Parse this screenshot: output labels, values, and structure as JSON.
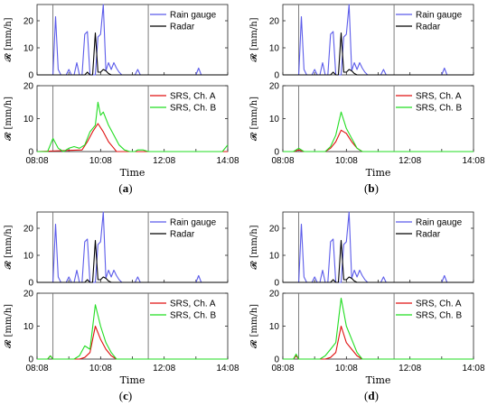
{
  "panel_labels": [
    {
      "open": "(",
      "letter": "a",
      "close": ")"
    },
    {
      "open": "(",
      "letter": "b",
      "close": ")"
    },
    {
      "open": "(",
      "letter": "c",
      "close": ")"
    },
    {
      "open": "(",
      "letter": "d",
      "close": ")"
    }
  ],
  "colors": {
    "rain_gauge": "#5b5bea",
    "radar": "#000000",
    "srs_a": "#e01010",
    "srs_b": "#22dd22",
    "marker_line": "#707070"
  },
  "chart_data": [
    {
      "panel": "a",
      "type": "line",
      "marker_times": [
        "08:38",
        "11:38"
      ],
      "top": {
        "ylabel": "𝓡 [mm/h]",
        "ylim": [
          0,
          26
        ],
        "yticks": [
          0,
          10,
          20
        ],
        "xlim": [
          "08:08",
          "14:08"
        ],
        "grid": false,
        "legend_position": "top-right",
        "series": [
          {
            "name": "Rain gauge",
            "color_key": "rain_gauge",
            "x": [
              "08:08",
              "08:38",
              "08:43",
              "08:48",
              "08:53",
              "08:58",
              "09:03",
              "09:08",
              "09:13",
              "09:18",
              "09:23",
              "09:28",
              "09:33",
              "09:38",
              "09:43",
              "09:48",
              "09:53",
              "09:58",
              "10:03",
              "10:08",
              "10:13",
              "10:18",
              "10:23",
              "10:28",
              "10:33",
              "10:38",
              "10:43",
              "10:48",
              "10:53",
              "10:58",
              "11:03",
              "11:08",
              "11:13",
              "11:18",
              "11:23",
              "13:08",
              "13:13",
              "13:18",
              "14:08"
            ],
            "y": [
              0,
              0,
              21.5,
              2,
              0,
              0,
              0,
              2,
              0,
              0,
              4.5,
              0,
              0,
              15,
              16,
              0,
              0,
              0,
              14,
              15,
              26,
              1.5,
              4.5,
              2,
              4.5,
              2.5,
              1,
              0,
              0,
              0,
              0,
              0,
              0,
              2,
              0,
              0,
              2.5,
              0,
              0
            ]
          },
          {
            "name": "Radar",
            "color_key": "radar",
            "x": [
              "08:08",
              "09:38",
              "09:43",
              "09:48",
              "09:53",
              "09:58",
              "10:03",
              "10:08",
              "10:13",
              "10:18",
              "10:23",
              "10:28",
              "10:33",
              "14:08"
            ],
            "y": [
              0,
              0,
              1,
              0,
              0,
              15.5,
              1,
              1,
              2,
              1.5,
              0.5,
              0,
              0,
              0
            ]
          }
        ]
      },
      "bottom": {
        "ylabel": "𝓡 [mm/h]",
        "xlabel": "Time",
        "ylim": [
          0,
          20
        ],
        "yticks": [
          0,
          10,
          20
        ],
        "xlim": [
          "08:08",
          "14:08"
        ],
        "xticks": [
          "08:08",
          "10:08",
          "12:08",
          "14:08"
        ],
        "grid": false,
        "legend_position": "top-right",
        "series": [
          {
            "name": "SRS, Ch. A",
            "color_key": "srs_a",
            "x": [
              "08:08",
              "09:33",
              "09:43",
              "09:53",
              "10:03",
              "10:13",
              "10:23",
              "10:33",
              "10:38",
              "14:08"
            ],
            "y": [
              0,
              0.5,
              3,
              6,
              8.5,
              6,
              3,
              1,
              0,
              0
            ]
          },
          {
            "name": "SRS, Ch. B",
            "color_key": "srs_b",
            "x": [
              "08:08",
              "08:28",
              "08:38",
              "08:48",
              "08:58",
              "09:08",
              "09:18",
              "09:28",
              "09:38",
              "09:48",
              "09:58",
              "10:03",
              "10:08",
              "10:13",
              "10:23",
              "10:33",
              "10:43",
              "10:53",
              "11:03",
              "11:13",
              "11:18",
              "11:28",
              "11:38",
              "13:58",
              "14:08"
            ],
            "y": [
              0,
              0,
              4,
              1,
              0,
              1,
              1.5,
              1,
              2,
              6,
              8,
              15,
              11,
              12,
              8,
              5,
              2,
              0.5,
              0,
              0,
              0.5,
              0.5,
              0,
              0,
              2
            ]
          }
        ]
      }
    },
    {
      "panel": "b",
      "type": "line",
      "marker_times": [
        "08:38",
        "11:38"
      ],
      "top": {
        "ylabel": "𝓡 [mm/h]",
        "ylim": [
          0,
          26
        ],
        "yticks": [
          0,
          10,
          20
        ],
        "xlim": [
          "08:08",
          "14:08"
        ],
        "grid": false,
        "legend_position": "top-right",
        "series": [
          {
            "name": "Rain gauge",
            "color_key": "rain_gauge",
            "x": [
              "08:08",
              "08:38",
              "08:43",
              "08:48",
              "08:53",
              "08:58",
              "09:03",
              "09:08",
              "09:13",
              "09:18",
              "09:23",
              "09:28",
              "09:33",
              "09:38",
              "09:43",
              "09:48",
              "09:53",
              "09:58",
              "10:03",
              "10:08",
              "10:13",
              "10:18",
              "10:23",
              "10:28",
              "10:33",
              "10:38",
              "10:43",
              "10:48",
              "10:53",
              "10:58",
              "11:03",
              "11:08",
              "11:13",
              "11:18",
              "11:23",
              "13:08",
              "13:13",
              "13:18",
              "14:08"
            ],
            "y": [
              0,
              0,
              21.5,
              2,
              0,
              0,
              0,
              2,
              0,
              0,
              4.5,
              0,
              0,
              15,
              16,
              0,
              0,
              0,
              14,
              15,
              26,
              1.5,
              4.5,
              2,
              4.5,
              2.5,
              1,
              0,
              0,
              0,
              0,
              0,
              0,
              2,
              0,
              0,
              2.5,
              0,
              0
            ]
          },
          {
            "name": "Radar",
            "color_key": "radar",
            "x": [
              "08:08",
              "09:38",
              "09:43",
              "09:48",
              "09:53",
              "09:58",
              "10:03",
              "10:08",
              "10:13",
              "10:18",
              "10:23",
              "10:28",
              "10:33",
              "14:08"
            ],
            "y": [
              0,
              0,
              1,
              0,
              0,
              15.5,
              1,
              1,
              2,
              1.5,
              0.5,
              0,
              0,
              0
            ]
          }
        ]
      },
      "bottom": {
        "ylabel": "𝓡 [mm/h]",
        "xlabel": "Time",
        "ylim": [
          0,
          20
        ],
        "yticks": [
          0,
          10,
          20
        ],
        "xlim": [
          "08:08",
          "14:08"
        ],
        "xticks": [
          "08:08",
          "10:08",
          "12:08",
          "14:08"
        ],
        "grid": false,
        "legend_position": "top-right",
        "series": [
          {
            "name": "SRS, Ch. A",
            "color_key": "srs_a",
            "x": [
              "08:08",
              "08:28",
              "08:38",
              "08:48",
              "09:28",
              "09:38",
              "09:48",
              "09:58",
              "10:08",
              "10:18",
              "10:28",
              "10:38",
              "14:08"
            ],
            "y": [
              0,
              0,
              0.5,
              0,
              0,
              1,
              3,
              6.5,
              5.5,
              3,
              1,
              0,
              0
            ]
          },
          {
            "name": "SRS, Ch. B",
            "color_key": "srs_b",
            "x": [
              "08:08",
              "08:28",
              "08:38",
              "08:48",
              "09:28",
              "09:38",
              "09:48",
              "09:58",
              "10:08",
              "10:18",
              "10:28",
              "10:38",
              "14:08"
            ],
            "y": [
              0,
              0,
              1,
              0,
              0,
              1.5,
              5,
              12,
              7,
              4,
              1,
              0,
              0
            ]
          }
        ]
      }
    },
    {
      "panel": "c",
      "type": "line",
      "marker_times": [
        "08:38",
        "11:38"
      ],
      "top": {
        "ylabel": "𝓡 [mm/h]",
        "ylim": [
          0,
          26
        ],
        "yticks": [
          0,
          10,
          20
        ],
        "xlim": [
          "08:08",
          "14:08"
        ],
        "grid": false,
        "legend_position": "top-right",
        "series": [
          {
            "name": "Rain gauge",
            "color_key": "rain_gauge",
            "x": [
              "08:08",
              "08:38",
              "08:43",
              "08:48",
              "08:53",
              "08:58",
              "09:03",
              "09:08",
              "09:13",
              "09:18",
              "09:23",
              "09:28",
              "09:33",
              "09:38",
              "09:43",
              "09:48",
              "09:53",
              "09:58",
              "10:03",
              "10:08",
              "10:13",
              "10:18",
              "10:23",
              "10:28",
              "10:33",
              "10:38",
              "10:43",
              "10:48",
              "10:53",
              "10:58",
              "11:03",
              "11:08",
              "11:13",
              "11:18",
              "11:23",
              "13:08",
              "13:13",
              "13:18",
              "14:08"
            ],
            "y": [
              0,
              0,
              21.5,
              2,
              0,
              0,
              0,
              2,
              0,
              0,
              4.5,
              0,
              0,
              15,
              16,
              0,
              0,
              0,
              14,
              15,
              26,
              1.5,
              4.5,
              2,
              4.5,
              2.5,
              1,
              0,
              0,
              0,
              0,
              0,
              0,
              2,
              0,
              0,
              2.5,
              0,
              0
            ]
          },
          {
            "name": "Radar",
            "color_key": "radar",
            "x": [
              "08:08",
              "09:38",
              "09:43",
              "09:48",
              "09:53",
              "09:58",
              "10:03",
              "10:08",
              "10:13",
              "10:18",
              "10:23",
              "10:28",
              "10:33",
              "14:08"
            ],
            "y": [
              0,
              0,
              1,
              0,
              0,
              15.5,
              1,
              1,
              2,
              1.5,
              0.5,
              0,
              0,
              0
            ]
          }
        ]
      },
      "bottom": {
        "ylabel": "𝓡 [mm/h]",
        "xlabel": "Time",
        "ylim": [
          0,
          20
        ],
        "yticks": [
          0,
          10,
          20
        ],
        "xlim": [
          "08:08",
          "14:08"
        ],
        "xticks": [
          "08:08",
          "10:08",
          "12:08",
          "14:08"
        ],
        "grid": false,
        "legend_position": "top-right",
        "series": [
          {
            "name": "SRS, Ch. A",
            "color_key": "srs_a",
            "x": [
              "08:08",
              "08:28",
              "08:33",
              "08:38",
              "09:28",
              "09:38",
              "09:48",
              "09:58",
              "10:08",
              "10:18",
              "10:28",
              "10:38",
              "14:08"
            ],
            "y": [
              0,
              0,
              1,
              0,
              0,
              0.5,
              2,
              10,
              6,
              3,
              1,
              0,
              0
            ]
          },
          {
            "name": "SRS, Ch. B",
            "color_key": "srs_b",
            "x": [
              "08:08",
              "08:28",
              "08:33",
              "08:38",
              "09:18",
              "09:28",
              "09:38",
              "09:48",
              "09:58",
              "10:08",
              "10:18",
              "10:28",
              "10:38",
              "14:08"
            ],
            "y": [
              0,
              0,
              1,
              0,
              0,
              1,
              4,
              3,
              16.5,
              10,
              5,
              2,
              0,
              0
            ]
          }
        ]
      }
    },
    {
      "panel": "d",
      "type": "line",
      "marker_times": [
        "08:38",
        "11:38"
      ],
      "top": {
        "ylabel": "𝓡 [mm/h]",
        "ylim": [
          0,
          26
        ],
        "yticks": [
          0,
          10,
          20
        ],
        "xlim": [
          "08:08",
          "14:08"
        ],
        "grid": false,
        "legend_position": "top-right",
        "series": [
          {
            "name": "Rain gauge",
            "color_key": "rain_gauge",
            "x": [
              "08:08",
              "08:38",
              "08:43",
              "08:48",
              "08:53",
              "08:58",
              "09:03",
              "09:08",
              "09:13",
              "09:18",
              "09:23",
              "09:28",
              "09:33",
              "09:38",
              "09:43",
              "09:48",
              "09:53",
              "09:58",
              "10:03",
              "10:08",
              "10:13",
              "10:18",
              "10:23",
              "10:28",
              "10:33",
              "10:38",
              "10:43",
              "10:48",
              "10:53",
              "10:58",
              "11:03",
              "11:08",
              "11:13",
              "11:18",
              "11:23",
              "13:08",
              "13:13",
              "13:18",
              "14:08"
            ],
            "y": [
              0,
              0,
              21.5,
              2,
              0,
              0,
              0,
              2,
              0,
              0,
              4.5,
              0,
              0,
              15,
              16,
              0,
              0,
              0,
              14,
              15,
              26,
              1.5,
              4.5,
              2,
              4.5,
              2.5,
              1,
              0,
              0,
              0,
              0,
              0,
              0,
              2,
              0,
              0,
              2.5,
              0,
              0
            ]
          },
          {
            "name": "Radar",
            "color_key": "radar",
            "x": [
              "08:08",
              "09:38",
              "09:43",
              "09:48",
              "09:53",
              "09:58",
              "10:03",
              "10:08",
              "10:13",
              "10:18",
              "10:23",
              "10:28",
              "10:33",
              "14:08"
            ],
            "y": [
              0,
              0,
              1,
              0,
              0,
              15.5,
              1,
              1,
              2,
              1.5,
              0.5,
              0,
              0,
              0
            ]
          }
        ]
      },
      "bottom": {
        "ylabel": "𝓡 [mm/h]",
        "xlabel": "Time",
        "ylim": [
          0,
          20
        ],
        "yticks": [
          0,
          10,
          20
        ],
        "xlim": [
          "08:08",
          "14:08"
        ],
        "xticks": [
          "08:08",
          "10:08",
          "12:08",
          "14:08"
        ],
        "grid": false,
        "legend_position": "top-right",
        "series": [
          {
            "name": "SRS, Ch. A",
            "color_key": "srs_a",
            "x": [
              "08:08",
              "08:28",
              "08:33",
              "08:38",
              "09:28",
              "09:38",
              "09:48",
              "09:58",
              "10:08",
              "10:18",
              "10:28",
              "10:38",
              "14:08"
            ],
            "y": [
              0,
              0,
              1,
              0,
              0,
              0.5,
              2,
              10,
              5,
              3,
              1,
              0,
              0
            ]
          },
          {
            "name": "SRS, Ch. B",
            "color_key": "srs_b",
            "x": [
              "08:08",
              "08:28",
              "08:33",
              "08:38",
              "09:18",
              "09:28",
              "09:38",
              "09:48",
              "09:58",
              "10:08",
              "10:18",
              "10:28",
              "10:38",
              "14:08"
            ],
            "y": [
              0,
              0,
              1.5,
              0,
              0,
              1,
              3,
              5,
              18.5,
              10,
              6,
              2,
              0,
              0
            ]
          }
        ]
      }
    }
  ]
}
